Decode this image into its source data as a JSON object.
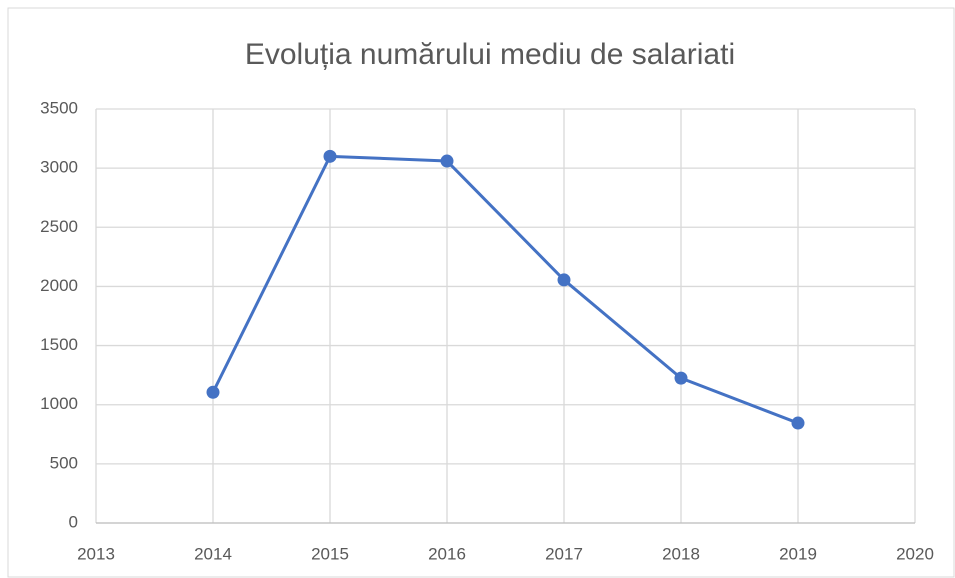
{
  "chart_data": {
    "type": "line",
    "title": "Evoluția numărului mediu de salariati",
    "x": [
      2014,
      2015,
      2016,
      2017,
      2018,
      2019
    ],
    "series": [
      {
        "color": "#4472c4",
        "values": [
          1105,
          3100,
          3060,
          2055,
          1225,
          845
        ]
      }
    ],
    "xlim": [
      2013,
      2020
    ],
    "xticks": [
      2013,
      2014,
      2015,
      2016,
      2017,
      2018,
      2019,
      2020
    ],
    "ylim": [
      0,
      3500
    ],
    "yticks": [
      0,
      500,
      1000,
      1500,
      2000,
      2500,
      3000,
      3500
    ],
    "grid": true
  }
}
